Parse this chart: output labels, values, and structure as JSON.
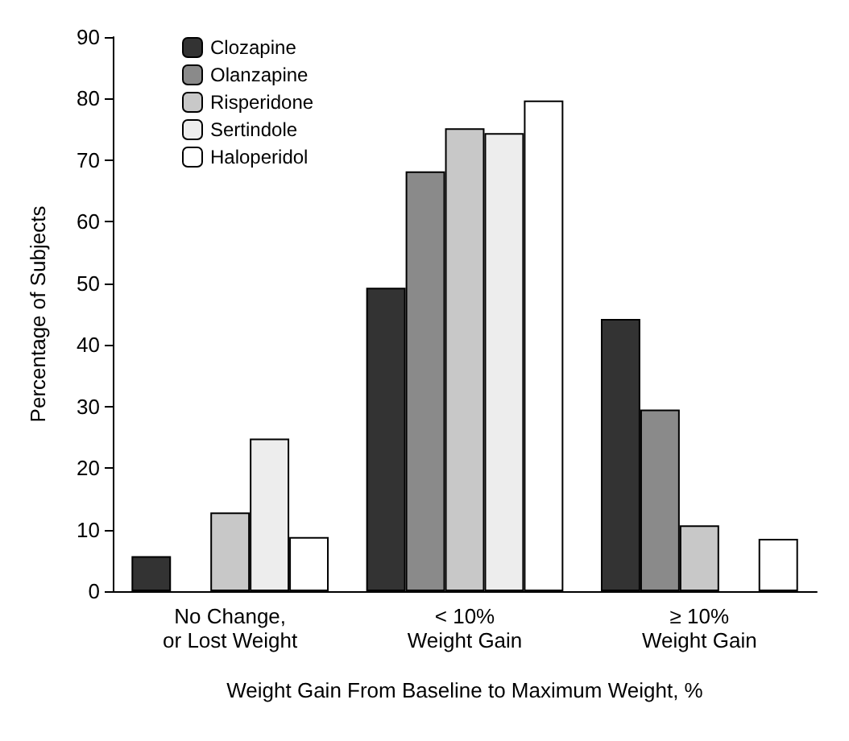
{
  "chart_data": {
    "type": "bar",
    "xlabel": "Weight Gain From Baseline to Maximum Weight, %",
    "ylabel": "Percentage of Subjects",
    "categories": [
      "No Change,\nor Lost Weight",
      "< 10%\nWeight Gain",
      "≥ 10%\nWeight Gain"
    ],
    "series": [
      {
        "name": "Clozapine",
        "color": "#333333",
        "values": [
          5.7,
          49.3,
          44.2
        ]
      },
      {
        "name": "Olanzapine",
        "color": "#8a8a8a",
        "values": [
          null,
          68.2,
          29.5
        ]
      },
      {
        "name": "Risperidone",
        "color": "#c8c8c8",
        "values": [
          12.8,
          75.2,
          10.7
        ]
      },
      {
        "name": "Sertindole",
        "color": "#ededed",
        "values": [
          24.8,
          74.4,
          null
        ]
      },
      {
        "name": "Haloperidol",
        "color": "#ffffff",
        "values": [
          8.8,
          79.7,
          8.5
        ]
      }
    ],
    "ylim": [
      0,
      90
    ],
    "yticks": [
      0,
      10,
      20,
      30,
      40,
      50,
      60,
      70,
      80,
      90
    ],
    "grid": false,
    "legend": "top left"
  }
}
